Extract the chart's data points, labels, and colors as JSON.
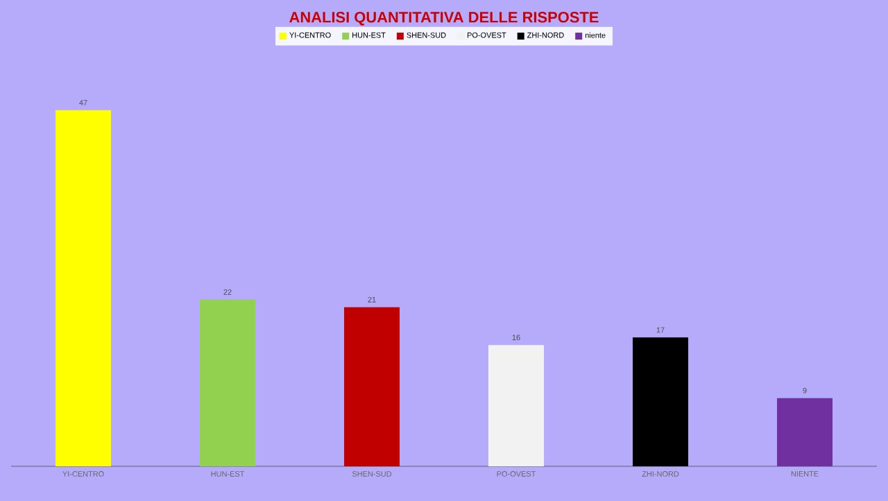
{
  "chart_data": {
    "type": "bar",
    "title": "ANALISI QUANTITATIVA DELLE RISPOSTE",
    "categories": [
      "YI-CENTRO",
      "HUN-EST",
      "SHEN-SUD",
      "PO-OVEST",
      "ZHI-NORD",
      "NIENTE"
    ],
    "series": [
      {
        "name": "YI-CENTRO",
        "color": "#ffff00",
        "values": [
          47,
          null,
          null,
          null,
          null,
          null
        ]
      },
      {
        "name": "HUN-EST",
        "color": "#92d050",
        "values": [
          null,
          22,
          null,
          null,
          null,
          null
        ]
      },
      {
        "name": "SHEN-SUD",
        "color": "#c00000",
        "values": [
          null,
          null,
          21,
          null,
          null,
          null
        ]
      },
      {
        "name": "PO-OVEST",
        "color": "#f2f2f2",
        "values": [
          null,
          null,
          null,
          16,
          null,
          null
        ]
      },
      {
        "name": "ZHI-NORD",
        "color": "#000000",
        "values": [
          null,
          null,
          null,
          null,
          17,
          null
        ]
      },
      {
        "name": "niente",
        "color": "#7030a0",
        "values": [
          null,
          null,
          null,
          null,
          null,
          9
        ]
      }
    ],
    "data_labels": true,
    "legend": "top"
  }
}
